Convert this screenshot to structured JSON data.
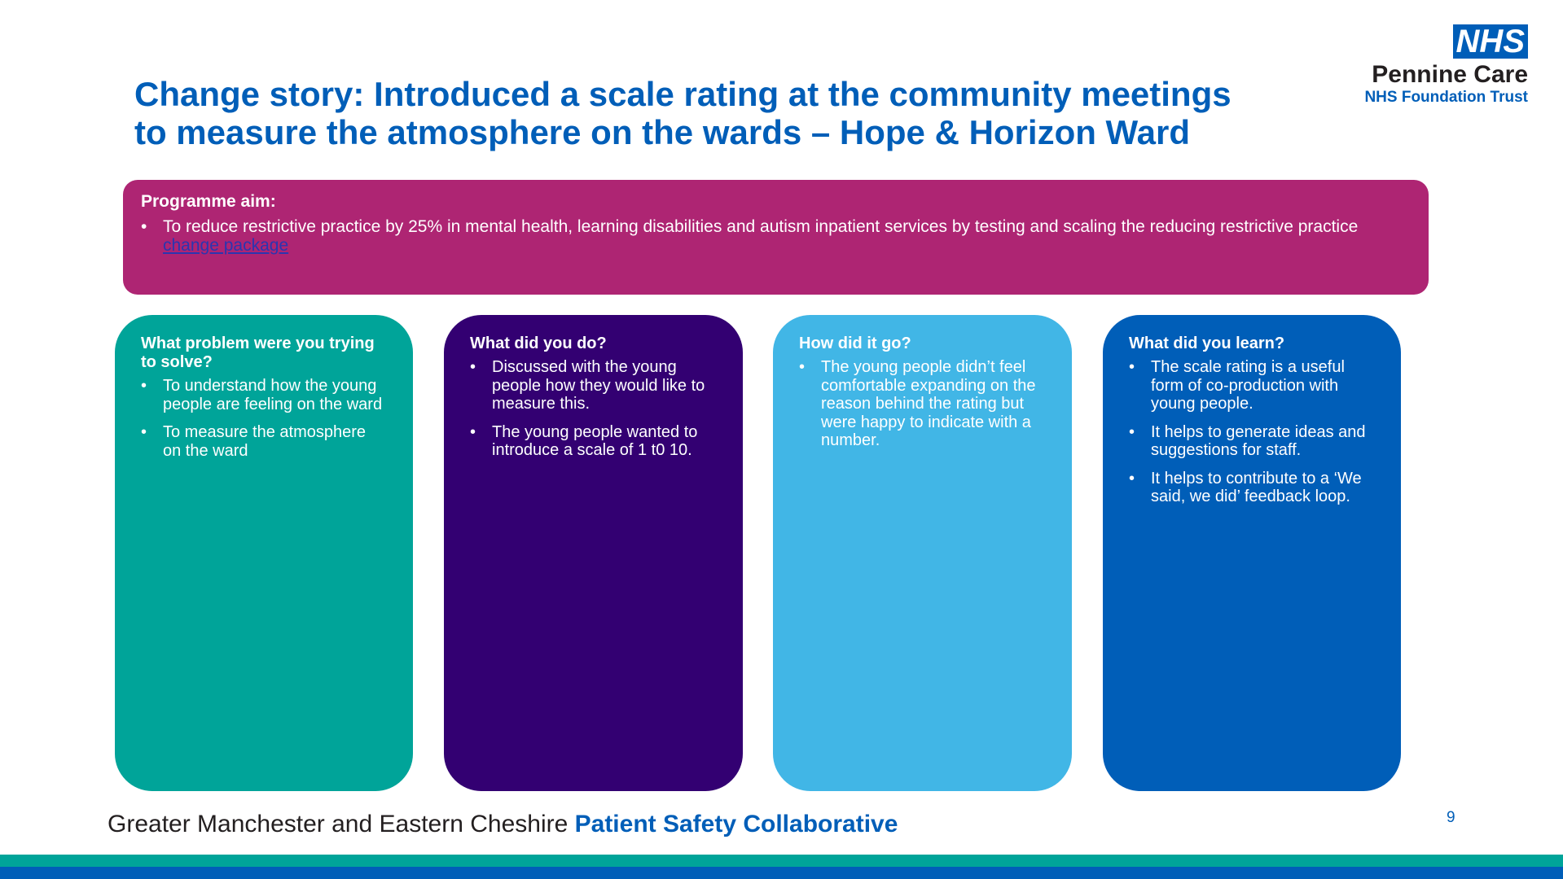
{
  "title": {
    "line1": "Change story: Introduced a scale rating at the community meetings",
    "line2": "to measure the atmosphere on the wards – Hope & Horizon Ward"
  },
  "logo": {
    "nhs": "NHS",
    "org_name": "Pennine Care",
    "org_sub": "NHS Foundation Trust"
  },
  "aim": {
    "heading": "Programme aim:",
    "text": "To reduce restrictive practice by 25% in mental health, learning disabilities and autism inpatient services by testing and scaling the reducing restrictive practice ",
    "link": "change package"
  },
  "cards": [
    {
      "heading": "What problem were you trying to solve?",
      "items": [
        "To understand how the young people are feeling on the ward",
        "To measure the atmosphere on the ward"
      ]
    },
    {
      "heading": "What did you do?",
      "items": [
        "Discussed with the young people how they would like to measure this.",
        "The young people wanted to introduce a scale of 1 t0 10."
      ]
    },
    {
      "heading": "How did it go?",
      "items": [
        "The young people didn’t feel comfortable expanding on the reason behind the rating but were happy to indicate with a number."
      ]
    },
    {
      "heading": "What did you learn?",
      "items": [
        " The scale rating is a useful form of co-production with young people.",
        "It helps to generate ideas and suggestions for staff.",
        "It helps to contribute to a ‘We said, we did’ feedback loop."
      ]
    }
  ],
  "footer": {
    "text": "Greater Manchester and Eastern Cheshire ",
    "accent": "Patient Safety Collaborative",
    "page_number": "9"
  },
  "colors": {
    "nhs_blue": "#005eb8",
    "aim_magenta": "#ae2573",
    "card_teal": "#00a499",
    "card_purple": "#330072",
    "card_light_blue": "#41b6e6",
    "card_blue": "#005eb8"
  }
}
